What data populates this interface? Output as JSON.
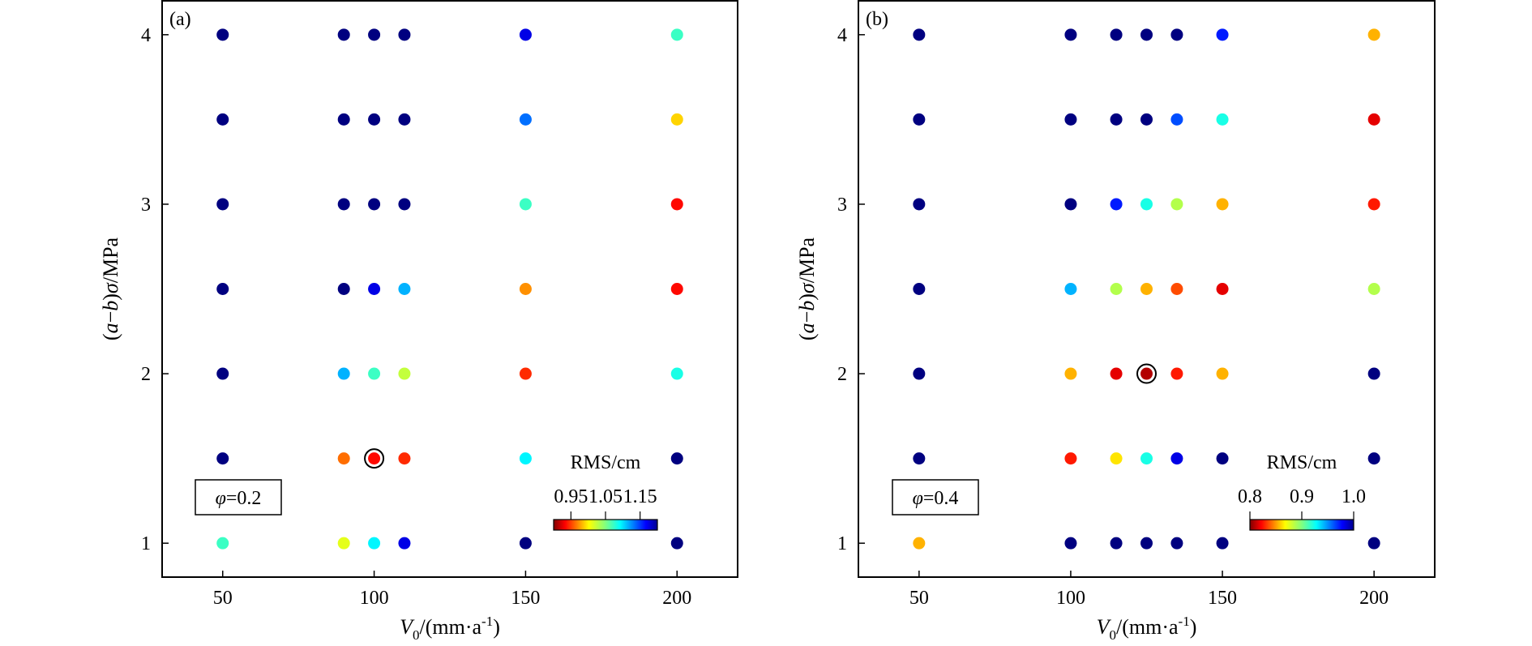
{
  "chart_data": [
    {
      "type": "scatter",
      "panel_label": "(a)",
      "title": "",
      "xlabel": "V0/(mm·a-1)",
      "ylabel": "(a−b)σ/MPa",
      "xlim": [
        30,
        220
      ],
      "ylim": [
        0.8,
        4.2
      ],
      "xticks": [
        50,
        100,
        150,
        200
      ],
      "yticks": [
        1,
        2,
        3,
        4
      ],
      "grid": false,
      "annotation": "φ=0.2",
      "colorbar": {
        "label": "RMS/cm",
        "ticks": [
          0.95,
          1.05,
          1.15
        ],
        "vmin": 0.9,
        "vmax": 1.2,
        "colormap": "jet_r",
        "position": "bottom-right"
      },
      "highlight": {
        "x": 100,
        "y": 1.5
      },
      "points": [
        {
          "x": 50,
          "y": 1.0,
          "v": 1.07
        },
        {
          "x": 50,
          "y": 1.5,
          "v": 1.2
        },
        {
          "x": 50,
          "y": 2.0,
          "v": 1.2
        },
        {
          "x": 50,
          "y": 2.5,
          "v": 1.2
        },
        {
          "x": 50,
          "y": 3.0,
          "v": 1.2
        },
        {
          "x": 50,
          "y": 3.5,
          "v": 1.2
        },
        {
          "x": 50,
          "y": 4.0,
          "v": 1.2
        },
        {
          "x": 90,
          "y": 1.0,
          "v": 1.02
        },
        {
          "x": 90,
          "y": 1.5,
          "v": 0.97
        },
        {
          "x": 90,
          "y": 2.0,
          "v": 1.11
        },
        {
          "x": 90,
          "y": 2.5,
          "v": 1.2
        },
        {
          "x": 90,
          "y": 3.0,
          "v": 1.2
        },
        {
          "x": 90,
          "y": 3.5,
          "v": 1.2
        },
        {
          "x": 90,
          "y": 4.0,
          "v": 1.2
        },
        {
          "x": 100,
          "y": 1.0,
          "v": 1.09
        },
        {
          "x": 100,
          "y": 1.5,
          "v": 0.94
        },
        {
          "x": 100,
          "y": 2.0,
          "v": 1.07
        },
        {
          "x": 100,
          "y": 2.5,
          "v": 1.17
        },
        {
          "x": 100,
          "y": 3.0,
          "v": 1.2
        },
        {
          "x": 100,
          "y": 3.5,
          "v": 1.2
        },
        {
          "x": 100,
          "y": 4.0,
          "v": 1.2
        },
        {
          "x": 110,
          "y": 1.0,
          "v": 1.17
        },
        {
          "x": 110,
          "y": 1.5,
          "v": 0.95
        },
        {
          "x": 110,
          "y": 2.0,
          "v": 1.03
        },
        {
          "x": 110,
          "y": 2.5,
          "v": 1.11
        },
        {
          "x": 110,
          "y": 3.0,
          "v": 1.2
        },
        {
          "x": 110,
          "y": 3.5,
          "v": 1.2
        },
        {
          "x": 110,
          "y": 4.0,
          "v": 1.2
        },
        {
          "x": 150,
          "y": 1.0,
          "v": 1.2
        },
        {
          "x": 150,
          "y": 1.5,
          "v": 1.09
        },
        {
          "x": 150,
          "y": 2.0,
          "v": 0.95
        },
        {
          "x": 150,
          "y": 2.5,
          "v": 0.98
        },
        {
          "x": 150,
          "y": 3.0,
          "v": 1.07
        },
        {
          "x": 150,
          "y": 3.5,
          "v": 1.13
        },
        {
          "x": 150,
          "y": 4.0,
          "v": 1.17
        },
        {
          "x": 200,
          "y": 1.0,
          "v": 1.2
        },
        {
          "x": 200,
          "y": 1.5,
          "v": 1.2
        },
        {
          "x": 200,
          "y": 2.0,
          "v": 1.08
        },
        {
          "x": 200,
          "y": 2.5,
          "v": 0.94
        },
        {
          "x": 200,
          "y": 3.0,
          "v": 0.94
        },
        {
          "x": 200,
          "y": 3.5,
          "v": 1.0
        },
        {
          "x": 200,
          "y": 4.0,
          "v": 1.07
        }
      ]
    },
    {
      "type": "scatter",
      "panel_label": "(b)",
      "title": "",
      "xlabel": "V0/(mm·a-1)",
      "ylabel": "(a−b)σ/MPa",
      "xlim": [
        30,
        220
      ],
      "ylim": [
        0.8,
        4.2
      ],
      "xticks": [
        50,
        100,
        150,
        200
      ],
      "yticks": [
        1,
        2,
        3,
        4
      ],
      "grid": false,
      "annotation": "φ=0.4",
      "colorbar": {
        "label": "RMS/cm",
        "ticks": [
          0.8,
          0.9,
          1.0
        ],
        "vmin": 0.8,
        "vmax": 1.0,
        "colormap": "jet_r",
        "position": "bottom-right"
      },
      "highlight": {
        "x": 125,
        "y": 2.0
      },
      "points": [
        {
          "x": 50,
          "y": 1.0,
          "v": 0.86
        },
        {
          "x": 50,
          "y": 1.5,
          "v": 1.0
        },
        {
          "x": 50,
          "y": 2.0,
          "v": 1.0
        },
        {
          "x": 50,
          "y": 2.5,
          "v": 1.0
        },
        {
          "x": 50,
          "y": 3.0,
          "v": 1.0
        },
        {
          "x": 50,
          "y": 3.5,
          "v": 1.0
        },
        {
          "x": 50,
          "y": 4.0,
          "v": 1.0
        },
        {
          "x": 100,
          "y": 1.0,
          "v": 1.0
        },
        {
          "x": 100,
          "y": 1.5,
          "v": 0.83
        },
        {
          "x": 100,
          "y": 2.0,
          "v": 0.86
        },
        {
          "x": 100,
          "y": 2.5,
          "v": 0.94
        },
        {
          "x": 100,
          "y": 3.0,
          "v": 1.0
        },
        {
          "x": 100,
          "y": 3.5,
          "v": 1.0
        },
        {
          "x": 100,
          "y": 4.0,
          "v": 1.0
        },
        {
          "x": 115,
          "y": 1.0,
          "v": 1.0
        },
        {
          "x": 115,
          "y": 1.5,
          "v": 0.87
        },
        {
          "x": 115,
          "y": 2.0,
          "v": 0.82
        },
        {
          "x": 115,
          "y": 2.5,
          "v": 0.89
        },
        {
          "x": 115,
          "y": 3.0,
          "v": 0.97
        },
        {
          "x": 115,
          "y": 3.5,
          "v": 1.0
        },
        {
          "x": 115,
          "y": 4.0,
          "v": 1.0
        },
        {
          "x": 125,
          "y": 1.0,
          "v": 1.0
        },
        {
          "x": 125,
          "y": 1.5,
          "v": 0.92
        },
        {
          "x": 125,
          "y": 2.0,
          "v": 0.81
        },
        {
          "x": 125,
          "y": 2.5,
          "v": 0.86
        },
        {
          "x": 125,
          "y": 3.0,
          "v": 0.92
        },
        {
          "x": 125,
          "y": 3.5,
          "v": 1.0
        },
        {
          "x": 125,
          "y": 4.0,
          "v": 1.0
        },
        {
          "x": 135,
          "y": 1.0,
          "v": 1.0
        },
        {
          "x": 135,
          "y": 1.5,
          "v": 0.98
        },
        {
          "x": 135,
          "y": 2.0,
          "v": 0.83
        },
        {
          "x": 135,
          "y": 2.5,
          "v": 0.84
        },
        {
          "x": 135,
          "y": 3.0,
          "v": 0.89
        },
        {
          "x": 135,
          "y": 3.5,
          "v": 0.96
        },
        {
          "x": 135,
          "y": 4.0,
          "v": 1.0
        },
        {
          "x": 150,
          "y": 1.0,
          "v": 1.0
        },
        {
          "x": 150,
          "y": 1.5,
          "v": 1.0
        },
        {
          "x": 150,
          "y": 2.0,
          "v": 0.86
        },
        {
          "x": 150,
          "y": 2.5,
          "v": 0.82
        },
        {
          "x": 150,
          "y": 3.0,
          "v": 0.86
        },
        {
          "x": 150,
          "y": 3.5,
          "v": 0.92
        },
        {
          "x": 150,
          "y": 4.0,
          "v": 0.97
        },
        {
          "x": 200,
          "y": 1.0,
          "v": 1.0
        },
        {
          "x": 200,
          "y": 1.5,
          "v": 1.0
        },
        {
          "x": 200,
          "y": 2.0,
          "v": 1.0
        },
        {
          "x": 200,
          "y": 2.5,
          "v": 0.89
        },
        {
          "x": 200,
          "y": 3.0,
          "v": 0.83
        },
        {
          "x": 200,
          "y": 3.5,
          "v": 0.82
        },
        {
          "x": 200,
          "y": 4.0,
          "v": 0.86
        }
      ]
    }
  ]
}
